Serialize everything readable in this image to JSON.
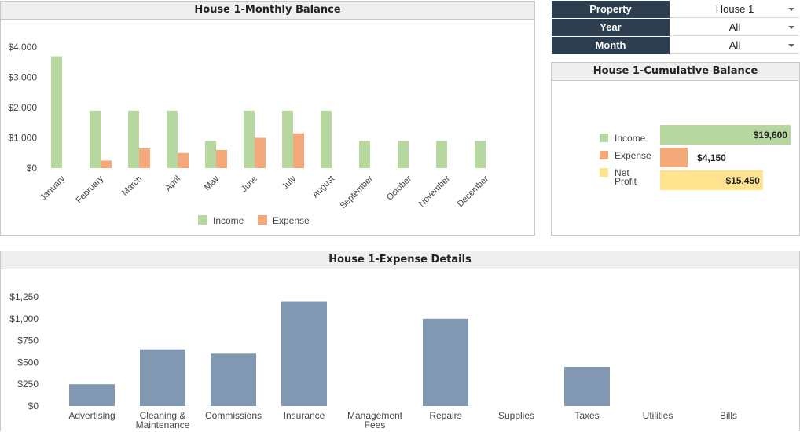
{
  "monthly": {
    "title": "House 1-Monthly Balance",
    "chart_data": {
      "type": "bar",
      "title": "House 1-Monthly Balance",
      "categories": [
        "January",
        "February",
        "March",
        "April",
        "May",
        "June",
        "July",
        "August",
        "September",
        "October",
        "November",
        "December"
      ],
      "series": [
        {
          "name": "Income",
          "color": "#b6d7a0",
          "values": [
            3700,
            1900,
            1900,
            1900,
            900,
            1900,
            1900,
            1900,
            900,
            900,
            900,
            900
          ]
        },
        {
          "name": "Expense",
          "color": "#f4a97a",
          "values": [
            0,
            250,
            650,
            500,
            600,
            1000,
            1150,
            0,
            0,
            0,
            0,
            0
          ]
        }
      ],
      "yticks": [
        "$0",
        "$1,000",
        "$2,000",
        "$3,000",
        "$4,000"
      ],
      "ytick_values": [
        0,
        1000,
        2000,
        3000,
        4000
      ],
      "ylim": [
        0,
        4000
      ],
      "legend": "bottom"
    }
  },
  "filters": [
    {
      "label": "Property",
      "value": "House 1"
    },
    {
      "label": "Year",
      "value": "All"
    },
    {
      "label": "Month",
      "value": "All"
    }
  ],
  "cumulative": {
    "title": "House 1-Cumulative Balance",
    "chart_data": {
      "type": "bar",
      "orientation": "horizontal",
      "title": "House 1-Cumulative Balance",
      "categories": [
        "Income",
        "Expense",
        "Net Profit"
      ],
      "legend_lines": [
        [
          "Income"
        ],
        [
          "Expense"
        ],
        [
          "Net",
          "Profit"
        ]
      ],
      "values": [
        19600,
        4150,
        15450
      ],
      "value_labels": [
        "$19,600",
        "$4,150",
        "$15,450"
      ],
      "colors": [
        "#b6d7a0",
        "#f4a97a",
        "#ffe38e"
      ],
      "xlim": [
        0,
        19600
      ],
      "legend": "left"
    }
  },
  "expense": {
    "title": "House 1-Expense Details",
    "chart_data": {
      "type": "bar",
      "title": "House 1-Expense Details",
      "categories": [
        [
          "Advertising"
        ],
        [
          "Cleaning &",
          "Maintenance"
        ],
        [
          "Commissions"
        ],
        [
          "Insurance"
        ],
        [
          "Management",
          "Fees"
        ],
        [
          "Repairs"
        ],
        [
          "Supplies"
        ],
        [
          "Taxes"
        ],
        [
          "Utilities"
        ],
        [
          "Bills"
        ]
      ],
      "values": [
        250,
        650,
        600,
        1200,
        0,
        1000,
        0,
        450,
        0,
        0
      ],
      "color": "#8297b1",
      "yticks": [
        "$0",
        "$250",
        "$500",
        "$750",
        "$1,000",
        "$1,250"
      ],
      "ytick_values": [
        0,
        250,
        500,
        750,
        1000,
        1250
      ],
      "ylim": [
        0,
        1250
      ]
    }
  }
}
